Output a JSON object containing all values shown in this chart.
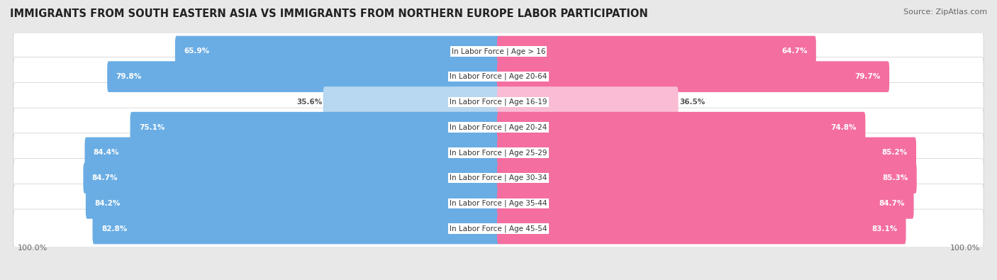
{
  "title": "IMMIGRANTS FROM SOUTH EASTERN ASIA VS IMMIGRANTS FROM NORTHERN EUROPE LABOR PARTICIPATION",
  "source": "Source: ZipAtlas.com",
  "categories": [
    "In Labor Force | Age > 16",
    "In Labor Force | Age 20-64",
    "In Labor Force | Age 16-19",
    "In Labor Force | Age 20-24",
    "In Labor Force | Age 25-29",
    "In Labor Force | Age 30-34",
    "In Labor Force | Age 35-44",
    "In Labor Force | Age 45-54"
  ],
  "left_values": [
    65.9,
    79.8,
    35.6,
    75.1,
    84.4,
    84.7,
    84.2,
    82.8
  ],
  "right_values": [
    64.7,
    79.7,
    36.5,
    74.8,
    85.2,
    85.3,
    84.7,
    83.1
  ],
  "left_label": "Immigrants from South Eastern Asia",
  "right_label": "Immigrants from Northern Europe",
  "left_color_strong": "#6aade4",
  "left_color_light": "#b8d7f0",
  "right_color_strong": "#f46ea0",
  "right_color_light": "#f9bcd4",
  "bg_color": "#e8e8e8",
  "row_bg_color": "#ffffff",
  "title_fontsize": 10.5,
  "source_fontsize": 8,
  "cat_fontsize": 7.5,
  "value_fontsize": 7.5,
  "max_value": 100.0
}
